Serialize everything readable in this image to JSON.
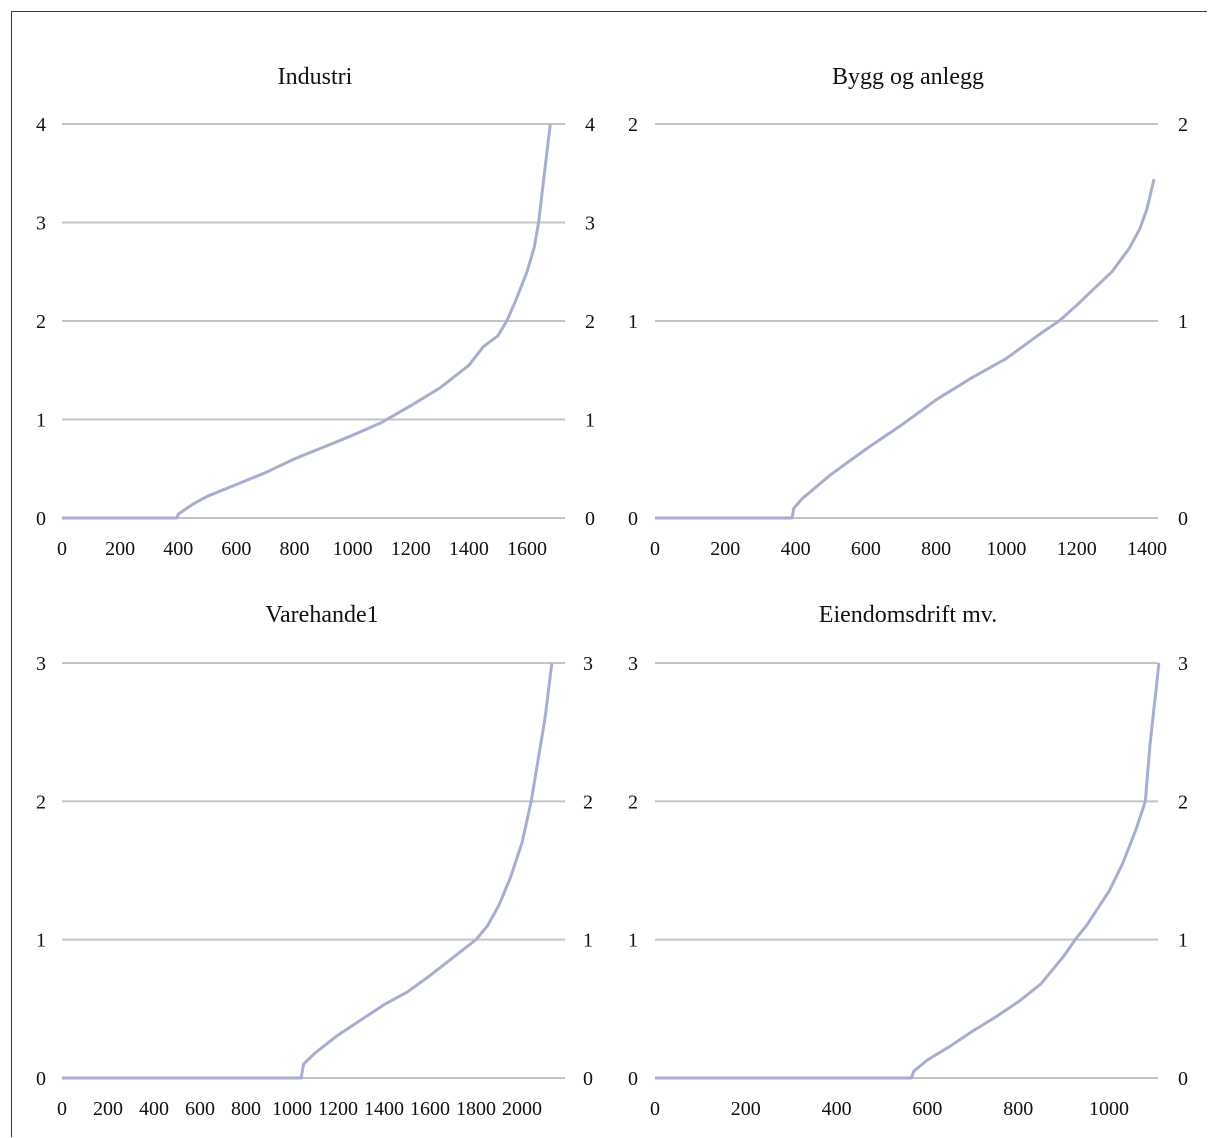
{
  "chart_data": [
    {
      "type": "line",
      "title": "Industri",
      "xlabel": "",
      "ylabel": "",
      "xlim": [
        0,
        1700
      ],
      "ylim": [
        0,
        4
      ],
      "x_ticks": [
        "0",
        "200",
        "400",
        "600",
        "800",
        "1000",
        "1200",
        "1400",
        "1600"
      ],
      "y_ticks": [
        "0",
        "1",
        "2",
        "3",
        "4"
      ],
      "y_ticks_right": [
        "0",
        "1",
        "2",
        "3",
        "4"
      ],
      "grid": true,
      "series": [
        {
          "x": [
            0,
            395,
            400,
            450,
            500,
            600,
            700,
            800,
            900,
            1000,
            1100,
            1200,
            1300,
            1400,
            1450,
            1500,
            1530,
            1560,
            1600,
            1625,
            1640,
            1660,
            1680
          ],
          "y": [
            0,
            0,
            0.04,
            0.14,
            0.22,
            0.34,
            0.46,
            0.6,
            0.72,
            0.84,
            0.97,
            1.14,
            1.32,
            1.55,
            1.74,
            1.85,
            2.0,
            2.2,
            2.5,
            2.75,
            3.0,
            3.5,
            4.0
          ]
        }
      ]
    },
    {
      "type": "line",
      "title": "Bygg og anlegg",
      "xlabel": "",
      "ylabel": "",
      "xlim": [
        0,
        1400
      ],
      "ylim": [
        0,
        2
      ],
      "x_ticks": [
        "0",
        "200",
        "400",
        "600",
        "800",
        "1000",
        "1200",
        "1400"
      ],
      "y_ticks": [
        "0",
        "1",
        "2"
      ],
      "y_ticks_right": [
        "0",
        "1",
        "2"
      ],
      "grid": true,
      "series": [
        {
          "x": [
            0,
            390,
            395,
            420,
            500,
            600,
            700,
            800,
            900,
            1000,
            1100,
            1150,
            1200,
            1300,
            1350,
            1380,
            1400,
            1420
          ],
          "y": [
            0,
            0,
            0.05,
            0.1,
            0.22,
            0.35,
            0.47,
            0.6,
            0.71,
            0.81,
            0.94,
            1.0,
            1.08,
            1.25,
            1.37,
            1.47,
            1.57,
            1.72
          ]
        }
      ]
    },
    {
      "type": "line",
      "title": "Varehande1",
      "xlabel": "",
      "ylabel": "",
      "xlim": [
        0,
        2100
      ],
      "ylim": [
        0,
        3
      ],
      "x_ticks": [
        "0",
        "200",
        "400",
        "600",
        "800",
        "1000",
        "1200",
        "1400",
        "1600",
        "1800",
        "2000"
      ],
      "y_ticks": [
        "0",
        "1",
        "2",
        "3"
      ],
      "y_ticks_right": [
        "0",
        "1",
        "2",
        "3"
      ],
      "grid": true,
      "series": [
        {
          "x": [
            0,
            1040,
            1050,
            1100,
            1200,
            1300,
            1400,
            1500,
            1600,
            1700,
            1800,
            1850,
            1900,
            1950,
            2000,
            2040,
            2070,
            2100,
            2130
          ],
          "y": [
            0,
            0,
            0.1,
            0.18,
            0.31,
            0.42,
            0.53,
            0.62,
            0.74,
            0.87,
            1.0,
            1.1,
            1.25,
            1.45,
            1.7,
            2.0,
            2.3,
            2.6,
            3.0
          ]
        }
      ]
    },
    {
      "type": "line",
      "title": "Eiendomsdrift mv.",
      "xlabel": "",
      "ylabel": "",
      "xlim": [
        0,
        1100
      ],
      "ylim": [
        0,
        3
      ],
      "x_ticks": [
        "0",
        "200",
        "400",
        "600",
        "800",
        "1000"
      ],
      "y_ticks": [
        "0",
        "1",
        "2",
        "3"
      ],
      "y_ticks_right": [
        "0",
        "1",
        "2",
        "3"
      ],
      "grid": true,
      "series": [
        {
          "x": [
            0,
            565,
            570,
            600,
            650,
            700,
            750,
            800,
            850,
            900,
            930,
            950,
            1000,
            1030,
            1060,
            1080,
            1090,
            1100,
            1105,
            1110
          ],
          "y": [
            0,
            0,
            0.05,
            0.13,
            0.23,
            0.34,
            0.44,
            0.55,
            0.68,
            0.88,
            1.02,
            1.1,
            1.35,
            1.55,
            1.8,
            2.0,
            2.4,
            2.7,
            2.85,
            3.0
          ]
        }
      ]
    }
  ]
}
